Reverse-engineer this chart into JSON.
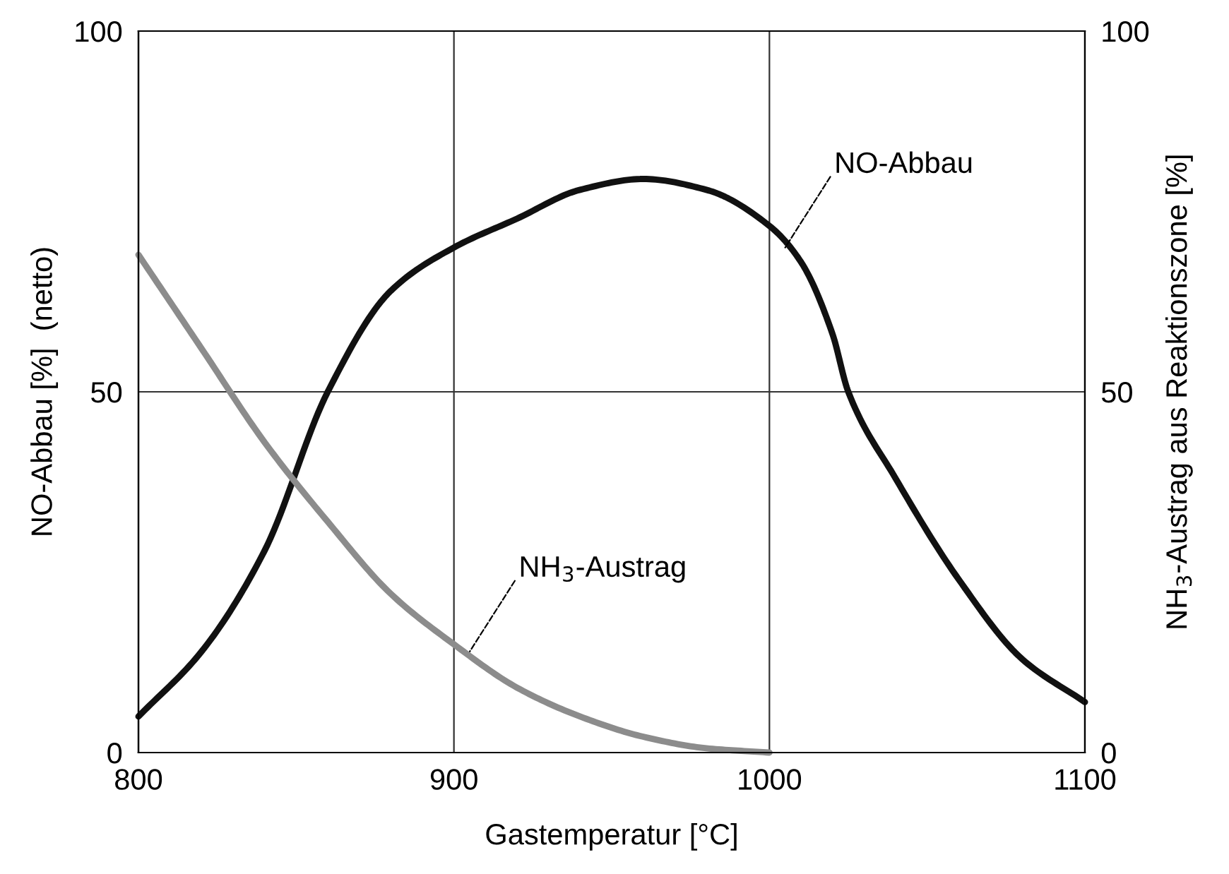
{
  "chart_data": {
    "type": "line",
    "xlabel": "Gastemperatur [°C]",
    "ylabel": "NO-Abbau [%]  (netto)",
    "y2label": "NH$_{3}$-Austrag aus Reaktionszone [%]",
    "xlim": [
      800,
      1100
    ],
    "xticks": [
      800,
      900,
      1000,
      1100
    ],
    "ylim": [
      0,
      100
    ],
    "yticks": [
      0,
      50,
      100
    ],
    "y2lim": [
      0,
      100
    ],
    "y2ticks": [
      0,
      50,
      100
    ],
    "grid": true,
    "line_style": "solid",
    "marker": "none",
    "series": [
      {
        "color": "#111111",
        "x": [
          800,
          820,
          840,
          860,
          880,
          900,
          920,
          940,
          960,
          980,
          1000,
          1010,
          1020,
          1025,
          1040,
          1060,
          1080,
          1100
        ],
        "values": [
          5,
          14,
          28,
          50,
          64,
          70,
          74,
          78,
          79.5,
          78,
          73,
          68,
          58,
          50,
          38,
          24,
          13,
          7
        ]
      },
      {
        "color": "#8c8c8c",
        "axis": "y2",
        "x": [
          800,
          820,
          840,
          860,
          880,
          900,
          920,
          940,
          960,
          980,
          1000
        ],
        "values": [
          69,
          56,
          43,
          32,
          22,
          15,
          9,
          5,
          2.2,
          0.6,
          0
        ]
      }
    ],
    "annotations": [
      {
        "text": "NO-Abbau",
        "x": 1005,
        "y": 70
      },
      {
        "text": "NH$_{3}$-Austrag",
        "x": 905,
        "y": 14
      }
    ]
  }
}
